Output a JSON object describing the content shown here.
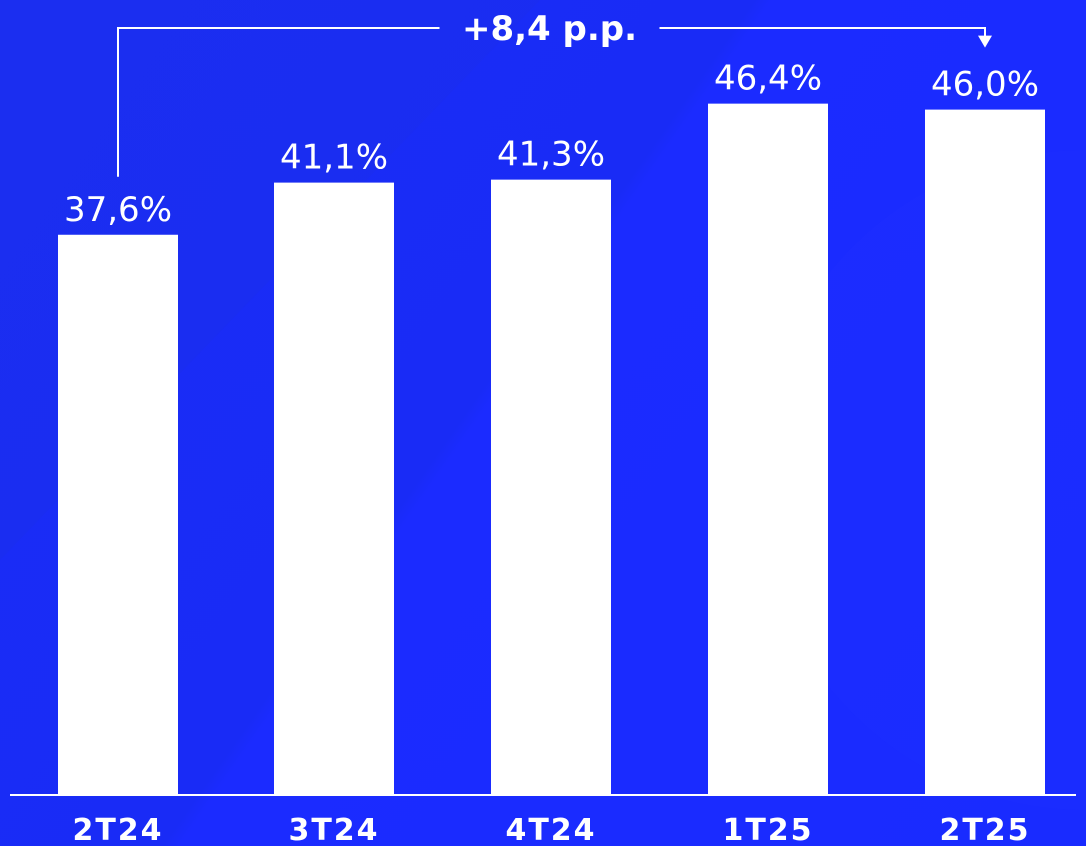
{
  "chart_data": {
    "type": "bar",
    "categories": [
      "2T24",
      "3T24",
      "4T24",
      "1T25",
      "2T25"
    ],
    "values": [
      37.6,
      41.1,
      41.3,
      46.4,
      46.0
    ],
    "value_labels": [
      "37,6%",
      "41,1%",
      "41,3%",
      "46,4%",
      "46,0%"
    ],
    "title": "",
    "xlabel": "",
    "ylabel": "",
    "ylim": [
      0,
      60
    ],
    "grid": false,
    "annotation": {
      "text": "+8,4 p.p.",
      "from_category": "2T24",
      "to_category": "2T25"
    }
  },
  "colors": {
    "background": "#1a2bf5",
    "bar": "#ffffff",
    "text": "#ffffff"
  }
}
